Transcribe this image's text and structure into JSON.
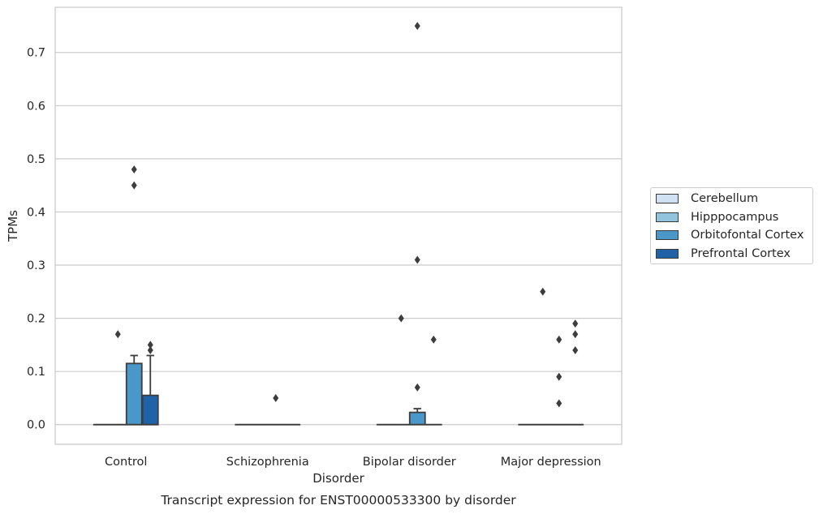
{
  "chart_data": {
    "type": "box",
    "title": "Transcript expression for ENST00000533300 by disorder",
    "xlabel": "Disorder",
    "ylabel": "TPMs",
    "ylim": [
      -0.037,
      0.785
    ],
    "yticks": [
      0.0,
      0.1,
      0.2,
      0.3,
      0.4,
      0.5,
      0.6,
      0.7
    ],
    "ytick_labels": [
      "0.0",
      "0.1",
      "0.2",
      "0.3",
      "0.4",
      "0.5",
      "0.6",
      "0.7"
    ],
    "grid": "horizontal",
    "legend_position": "right",
    "categories": [
      "Control",
      "Schizophrenia",
      "Bipolar disorder",
      "Major depression"
    ],
    "series": [
      {
        "name": "Cerebellum",
        "color": "#cfe1f2",
        "boxes": [
          {
            "q1": 0,
            "median": 0,
            "q3": 0,
            "whisker_low": 0,
            "whisker_high": 0,
            "outliers": []
          },
          {
            "q1": 0,
            "median": 0,
            "q3": 0,
            "whisker_low": 0,
            "whisker_high": 0,
            "outliers": []
          },
          {
            "q1": 0,
            "median": 0,
            "q3": 0,
            "whisker_low": 0,
            "whisker_high": 0,
            "outliers": []
          },
          {
            "q1": 0,
            "median": 0,
            "q3": 0,
            "whisker_low": 0,
            "whisker_high": 0,
            "outliers": []
          }
        ]
      },
      {
        "name": "Hipppocampus",
        "color": "#93c4de",
        "boxes": [
          {
            "q1": 0,
            "median": 0,
            "q3": 0,
            "whisker_low": 0,
            "whisker_high": 0,
            "outliers": [
              0.17
            ]
          },
          {
            "q1": 0,
            "median": 0,
            "q3": 0,
            "whisker_low": 0,
            "whisker_high": 0,
            "outliers": []
          },
          {
            "q1": 0,
            "median": 0,
            "q3": 0,
            "whisker_low": 0,
            "whisker_high": 0,
            "outliers": [
              0.2
            ]
          },
          {
            "q1": 0,
            "median": 0,
            "q3": 0,
            "whisker_low": 0,
            "whisker_high": 0,
            "outliers": [
              0.25
            ]
          }
        ]
      },
      {
        "name": "Orbitofontal Cortex",
        "color": "#4a98c9",
        "boxes": [
          {
            "q1": 0,
            "median": 0,
            "q3": 0.115,
            "whisker_low": 0,
            "whisker_high": 0.13,
            "outliers": [
              0.45,
              0.48
            ]
          },
          {
            "q1": 0,
            "median": 0,
            "q3": 0,
            "whisker_low": 0,
            "whisker_high": 0,
            "outliers": [
              0.05
            ]
          },
          {
            "q1": 0,
            "median": 0,
            "q3": 0.023,
            "whisker_low": 0,
            "whisker_high": 0.03,
            "outliers": [
              0.07,
              0.31,
              0.75
            ]
          },
          {
            "q1": 0,
            "median": 0,
            "q3": 0,
            "whisker_low": 0,
            "whisker_high": 0,
            "outliers": [
              0.04,
              0.09,
              0.16
            ]
          }
        ]
      },
      {
        "name": "Prefrontal Cortex",
        "color": "#1f62a8",
        "boxes": [
          {
            "q1": 0,
            "median": 0,
            "q3": 0.055,
            "whisker_low": 0,
            "whisker_high": 0.13,
            "outliers": [
              0.14,
              0.15
            ]
          },
          {
            "q1": 0,
            "median": 0,
            "q3": 0,
            "whisker_low": 0,
            "whisker_high": 0,
            "outliers": []
          },
          {
            "q1": 0,
            "median": 0,
            "q3": 0,
            "whisker_low": 0,
            "whisker_high": 0,
            "outliers": [
              0.16
            ]
          },
          {
            "q1": 0,
            "median": 0,
            "q3": 0,
            "whisker_low": 0,
            "whisker_high": 0,
            "outliers": [
              0.14,
              0.17,
              0.19
            ]
          }
        ]
      }
    ]
  }
}
